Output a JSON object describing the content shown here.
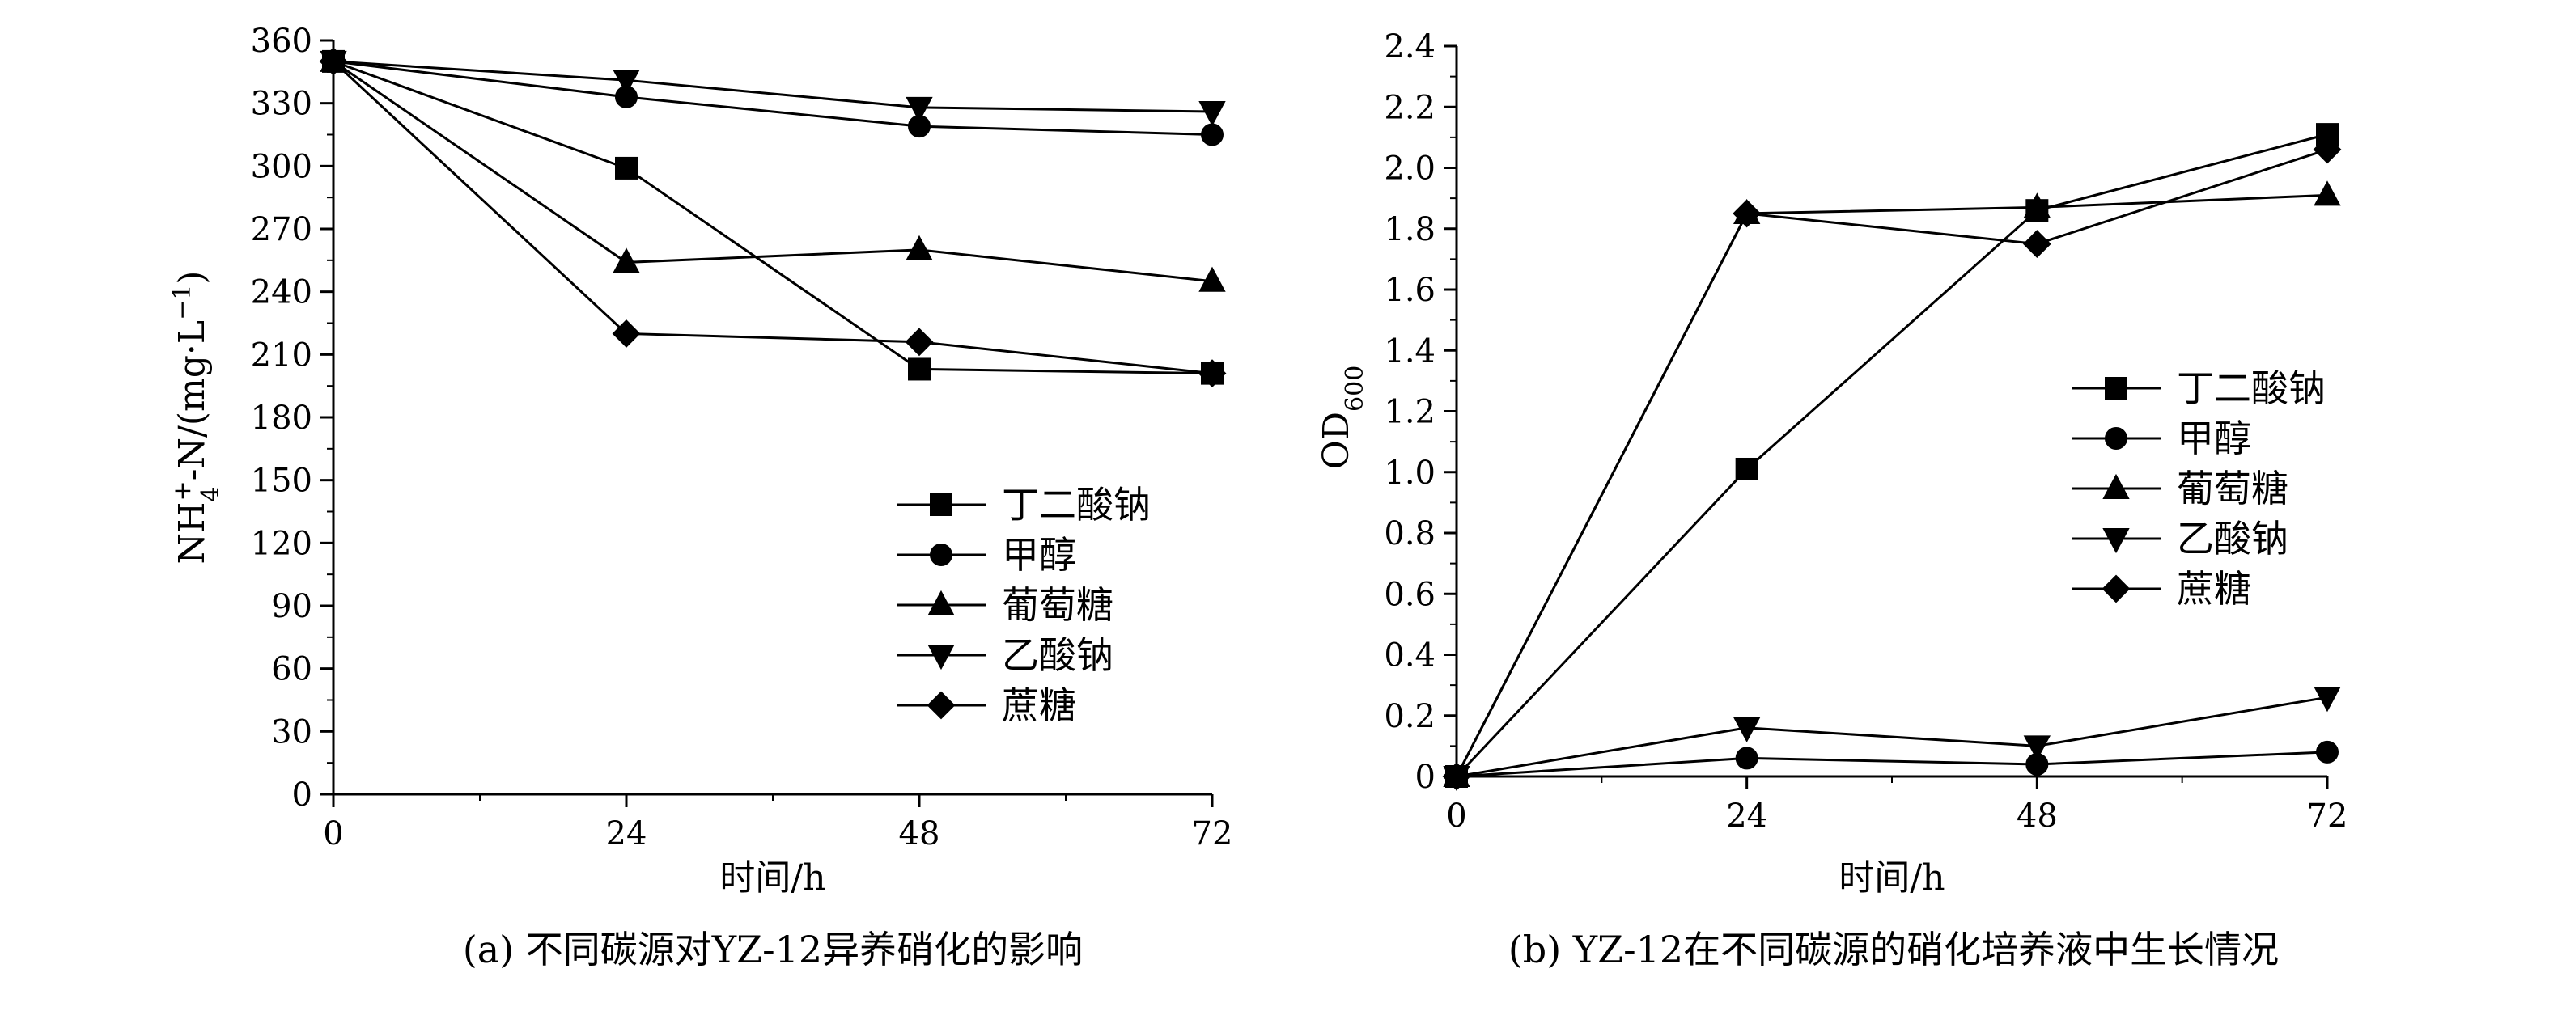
{
  "chart_data": [
    {
      "type": "line",
      "caption": "(a) 不同碳源对YZ-12异养硝化的影响",
      "xlabel": "时间/h",
      "ylabel": "NH4+-N/(mg·L−1)",
      "ylabel_parts": {
        "main": "NH",
        "sub": "4",
        "sup": "+",
        "rest": "-N/(mg·L",
        "rest_sup": "−1",
        "end": ")"
      },
      "x": [
        0,
        24,
        48,
        72
      ],
      "xticks": [
        0,
        24,
        48,
        72
      ],
      "xlim": [
        0,
        72
      ],
      "ylim": [
        0,
        360
      ],
      "yticks": [
        0,
        30,
        60,
        90,
        120,
        150,
        180,
        210,
        240,
        270,
        300,
        330,
        360
      ],
      "legend_position": "lower-right",
      "grid": false,
      "series": [
        {
          "name": "丁二酸钠",
          "marker": "square",
          "values": [
            350,
            299,
            203,
            201
          ]
        },
        {
          "name": "甲醇",
          "marker": "circle",
          "values": [
            350,
            333,
            319,
            315
          ]
        },
        {
          "name": "葡萄糖",
          "marker": "triangle-up",
          "values": [
            350,
            254,
            260,
            245
          ]
        },
        {
          "name": "乙酸钠",
          "marker": "triangle-down",
          "values": [
            350,
            341,
            328,
            326
          ]
        },
        {
          "name": "蔗糖",
          "marker": "diamond",
          "values": [
            350,
            220,
            216,
            201
          ]
        }
      ]
    },
    {
      "type": "line",
      "caption": "(b) YZ-12在不同碳源的硝化培养液中生长情况",
      "xlabel": "时间/h",
      "ylabel": "OD600",
      "ylabel_parts": {
        "main": "OD",
        "sub": "600"
      },
      "x": [
        0,
        24,
        48,
        72
      ],
      "xticks": [
        0,
        24,
        48,
        72
      ],
      "xlim": [
        0,
        72
      ],
      "ylim": [
        0,
        2.4
      ],
      "yticks": [
        "0",
        "0.2",
        "0.4",
        "0.6",
        "0.8",
        "1.0",
        "1.2",
        "1.4",
        "1.6",
        "1.8",
        "2.0",
        "2.2",
        "2.4"
      ],
      "legend_position": "middle-right",
      "grid": false,
      "series": [
        {
          "name": "丁二酸钠",
          "marker": "square",
          "values": [
            0,
            1.01,
            1.86,
            2.11
          ]
        },
        {
          "name": "甲醇",
          "marker": "circle",
          "values": [
            0,
            0.06,
            0.04,
            0.08
          ]
        },
        {
          "name": "葡萄糖",
          "marker": "triangle-up",
          "values": [
            0,
            1.85,
            1.87,
            1.91
          ]
        },
        {
          "name": "乙酸钠",
          "marker": "triangle-down",
          "values": [
            0,
            0.16,
            0.1,
            0.26
          ]
        },
        {
          "name": "蔗糖",
          "marker": "diamond",
          "values": [
            0,
            1.85,
            1.75,
            2.06
          ]
        }
      ]
    }
  ]
}
